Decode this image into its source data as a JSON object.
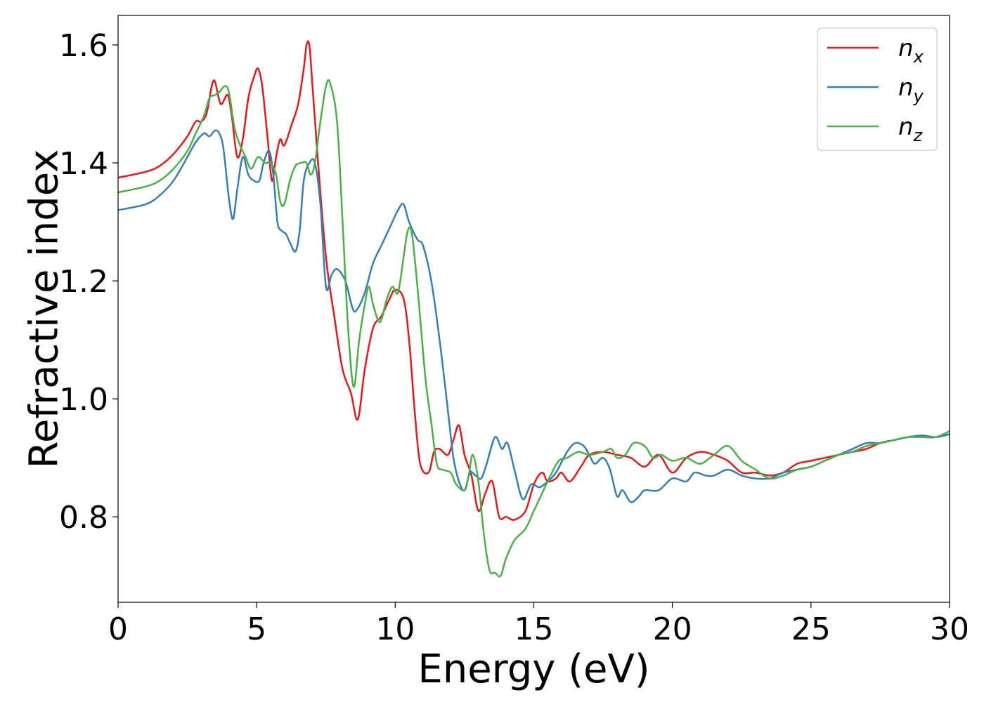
{
  "chart_data": {
    "type": "line",
    "title": "",
    "xlabel": "Energy (eV)",
    "ylabel": "Refractive index",
    "xlim": [
      0,
      30
    ],
    "ylim": [
      0.655,
      1.65
    ],
    "xticks": [
      0,
      5,
      10,
      15,
      20,
      25,
      30
    ],
    "xtick_labels": [
      "0",
      "5",
      "10",
      "15",
      "20",
      "25",
      "30"
    ],
    "yticks": [
      0.8,
      1.0,
      1.2,
      1.4,
      1.6
    ],
    "ytick_labels": [
      "0.8",
      "1.0",
      "1.2",
      "1.4",
      "1.6"
    ],
    "grid": false,
    "legend_position": "top-right",
    "series": [
      {
        "name": "n_x",
        "label_main": "n",
        "label_sub": "x",
        "color": "#e41a1c",
        "x": [
          0,
          1,
          1.5,
          2,
          2.5,
          2.8,
          3,
          3.2,
          3.45,
          3.7,
          3.95,
          4.1,
          4.3,
          4.5,
          4.7,
          4.9,
          5.05,
          5.2,
          5.4,
          5.55,
          5.7,
          5.85,
          6.0,
          6.3,
          6.5,
          6.7,
          6.8,
          6.9,
          7.0,
          7.2,
          7.5,
          7.8,
          8.1,
          8.4,
          8.65,
          8.9,
          9.2,
          9.5,
          9.8,
          10.0,
          10.3,
          10.5,
          10.7,
          10.9,
          11.2,
          11.4,
          11.6,
          11.9,
          12.1,
          12.3,
          12.5,
          12.75,
          13.0,
          13.25,
          13.5,
          13.75,
          14.0,
          14.3,
          14.7,
          15.0,
          15.3,
          15.5,
          15.8,
          16.0,
          16.3,
          16.7,
          17.0,
          17.5,
          18.0,
          18.5,
          19.0,
          19.5,
          20.0,
          20.5,
          21.0,
          21.5,
          22.0,
          22.5,
          23.0,
          23.5,
          24.0,
          24.5,
          25.0,
          25.5,
          26.0,
          26.5,
          27.0,
          27.5,
          28.0,
          28.5,
          29.0,
          29.5,
          30.0
        ],
        "y": [
          1.375,
          1.385,
          1.395,
          1.415,
          1.445,
          1.47,
          1.47,
          1.485,
          1.54,
          1.5,
          1.515,
          1.48,
          1.41,
          1.44,
          1.51,
          1.545,
          1.56,
          1.53,
          1.44,
          1.37,
          1.41,
          1.44,
          1.43,
          1.47,
          1.5,
          1.56,
          1.6,
          1.6,
          1.54,
          1.41,
          1.24,
          1.14,
          1.05,
          1.01,
          0.965,
          1.05,
          1.12,
          1.14,
          1.17,
          1.185,
          1.17,
          1.1,
          0.98,
          0.89,
          0.875,
          0.91,
          0.915,
          0.905,
          0.93,
          0.955,
          0.905,
          0.87,
          0.81,
          0.84,
          0.86,
          0.8,
          0.8,
          0.795,
          0.81,
          0.855,
          0.875,
          0.86,
          0.865,
          0.875,
          0.86,
          0.885,
          0.905,
          0.91,
          0.905,
          0.9,
          0.885,
          0.905,
          0.875,
          0.9,
          0.91,
          0.905,
          0.895,
          0.875,
          0.875,
          0.87,
          0.875,
          0.89,
          0.895,
          0.9,
          0.905,
          0.91,
          0.915,
          0.925,
          0.93,
          0.935,
          0.935,
          0.935,
          0.94
        ]
      },
      {
        "name": "n_y",
        "label_main": "n",
        "label_sub": "y",
        "color": "#377eb8",
        "x": [
          0,
          1,
          1.5,
          2,
          2.5,
          2.8,
          3.1,
          3.3,
          3.5,
          3.65,
          3.8,
          4.0,
          4.15,
          4.3,
          4.5,
          4.7,
          4.9,
          5.1,
          5.25,
          5.45,
          5.6,
          5.75,
          5.9,
          6.05,
          6.2,
          6.4,
          6.55,
          6.7,
          6.9,
          7.1,
          7.3,
          7.5,
          7.7,
          7.9,
          8.2,
          8.45,
          8.6,
          8.9,
          9.2,
          9.5,
          9.8,
          10.1,
          10.3,
          10.5,
          10.8,
          11.0,
          11.3,
          11.6,
          11.9,
          12.1,
          12.3,
          12.5,
          12.7,
          12.9,
          13.1,
          13.3,
          13.6,
          13.85,
          14.05,
          14.3,
          14.6,
          14.9,
          15.2,
          15.5,
          15.8,
          16.2,
          16.5,
          16.8,
          17.0,
          17.2,
          17.5,
          17.75,
          18.0,
          18.2,
          18.5,
          18.8,
          19.0,
          19.5,
          20.0,
          20.5,
          20.8,
          21.2,
          21.5,
          22.0,
          22.5,
          23.0,
          23.5,
          24.0,
          24.5,
          25.0,
          25.5,
          26.0,
          26.5,
          27.0,
          27.5,
          28.0,
          28.5,
          29.0,
          29.5,
          30.0
        ],
        "y": [
          1.32,
          1.33,
          1.345,
          1.37,
          1.41,
          1.435,
          1.45,
          1.445,
          1.455,
          1.45,
          1.425,
          1.34,
          1.305,
          1.355,
          1.41,
          1.38,
          1.37,
          1.37,
          1.4,
          1.42,
          1.38,
          1.3,
          1.285,
          1.28,
          1.265,
          1.25,
          1.285,
          1.37,
          1.4,
          1.4,
          1.33,
          1.19,
          1.21,
          1.22,
          1.2,
          1.155,
          1.15,
          1.18,
          1.23,
          1.26,
          1.29,
          1.32,
          1.33,
          1.3,
          1.27,
          1.26,
          1.2,
          1.1,
          0.98,
          0.9,
          0.86,
          0.845,
          0.875,
          0.87,
          0.865,
          0.89,
          0.935,
          0.915,
          0.925,
          0.88,
          0.83,
          0.855,
          0.85,
          0.86,
          0.875,
          0.91,
          0.925,
          0.92,
          0.905,
          0.89,
          0.9,
          0.88,
          0.835,
          0.845,
          0.825,
          0.835,
          0.845,
          0.845,
          0.865,
          0.86,
          0.875,
          0.87,
          0.87,
          0.88,
          0.87,
          0.865,
          0.865,
          0.875,
          0.88,
          0.885,
          0.895,
          0.905,
          0.915,
          0.925,
          0.925,
          0.93,
          0.935,
          0.938,
          0.935,
          0.94
        ]
      },
      {
        "name": "n_z",
        "label_main": "n",
        "label_sub": "z",
        "color": "#4daf4a",
        "x": [
          0,
          1,
          1.5,
          2,
          2.5,
          2.8,
          3.1,
          3.3,
          3.5,
          3.65,
          3.85,
          4.0,
          4.2,
          4.4,
          4.6,
          4.8,
          5.05,
          5.3,
          5.5,
          5.7,
          5.85,
          6.0,
          6.2,
          6.4,
          6.6,
          6.8,
          6.95,
          7.1,
          7.3,
          7.5,
          7.65,
          7.9,
          8.1,
          8.3,
          8.5,
          8.7,
          8.9,
          9.05,
          9.2,
          9.45,
          9.7,
          9.9,
          10.1,
          10.3,
          10.45,
          10.6,
          10.8,
          11.1,
          11.3,
          11.5,
          11.7,
          12.0,
          12.2,
          12.5,
          12.65,
          12.8,
          13.0,
          13.2,
          13.4,
          13.6,
          13.8,
          14.0,
          14.3,
          14.7,
          15.0,
          15.3,
          15.6,
          15.9,
          16.2,
          16.6,
          17.0,
          17.5,
          17.8,
          18.0,
          18.3,
          18.6,
          19.0,
          19.3,
          19.6,
          20.0,
          20.5,
          21.0,
          21.5,
          22.0,
          22.5,
          23.0,
          23.5,
          24.0,
          24.5,
          25.0,
          25.5,
          26.0,
          26.5,
          27.0,
          27.5,
          28.0,
          28.5,
          29.0,
          29.5,
          30.0
        ],
        "y": [
          1.35,
          1.36,
          1.37,
          1.39,
          1.42,
          1.45,
          1.48,
          1.51,
          1.515,
          1.52,
          1.53,
          1.52,
          1.46,
          1.43,
          1.41,
          1.39,
          1.41,
          1.4,
          1.4,
          1.38,
          1.335,
          1.33,
          1.37,
          1.395,
          1.4,
          1.4,
          1.38,
          1.4,
          1.47,
          1.53,
          1.535,
          1.47,
          1.3,
          1.12,
          1.02,
          1.1,
          1.16,
          1.19,
          1.16,
          1.13,
          1.17,
          1.19,
          1.18,
          1.24,
          1.285,
          1.28,
          1.19,
          1.03,
          0.96,
          0.89,
          0.88,
          0.875,
          0.855,
          0.845,
          0.87,
          0.905,
          0.86,
          0.77,
          0.71,
          0.705,
          0.7,
          0.73,
          0.76,
          0.78,
          0.81,
          0.84,
          0.87,
          0.895,
          0.9,
          0.91,
          0.905,
          0.91,
          0.915,
          0.9,
          0.905,
          0.925,
          0.92,
          0.9,
          0.905,
          0.895,
          0.9,
          0.89,
          0.905,
          0.92,
          0.895,
          0.88,
          0.865,
          0.87,
          0.88,
          0.885,
          0.895,
          0.905,
          0.91,
          0.92,
          0.925,
          0.93,
          0.935,
          0.935,
          0.935,
          0.945
        ]
      }
    ]
  }
}
